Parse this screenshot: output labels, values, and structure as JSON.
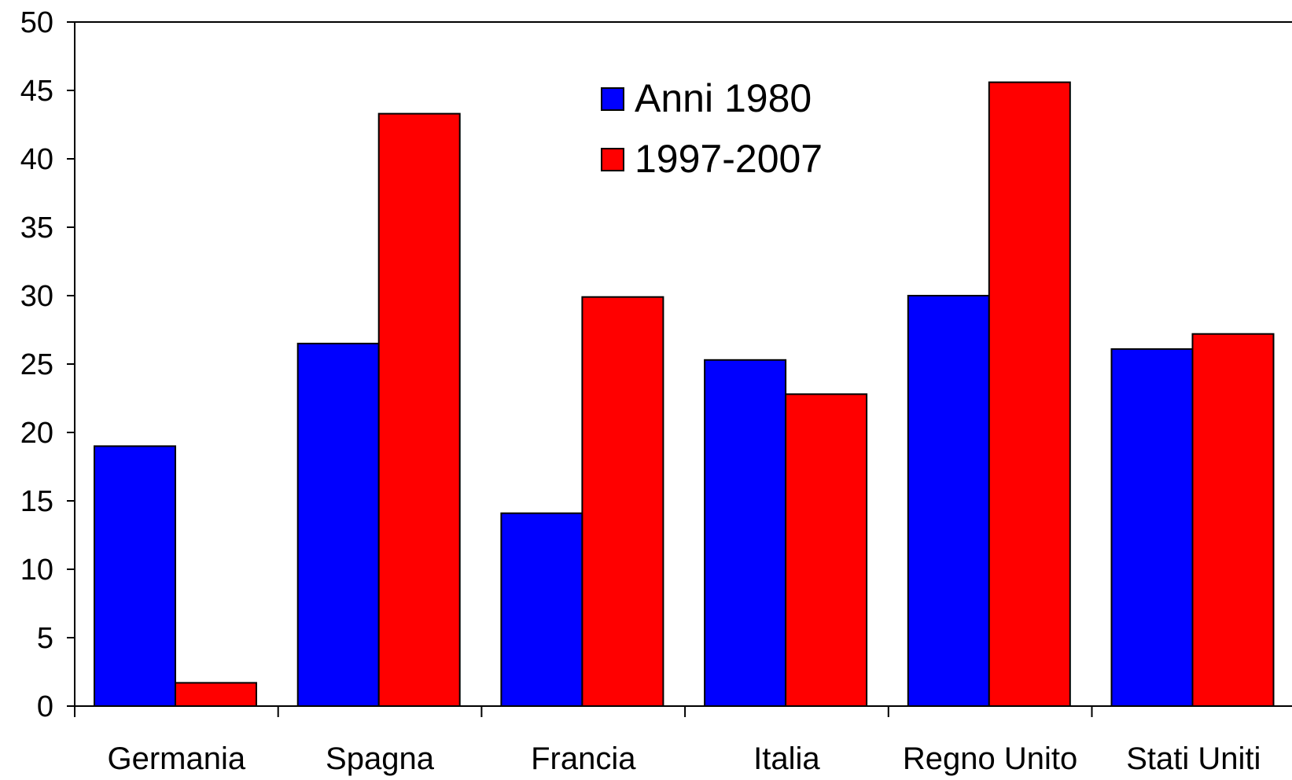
{
  "chart_data": {
    "type": "bar",
    "title": "",
    "xlabel": "",
    "ylabel": "",
    "ylim": [
      0,
      50
    ],
    "yticks": [
      0,
      5,
      10,
      15,
      20,
      25,
      30,
      35,
      40,
      45,
      50
    ],
    "categories": [
      "Germania",
      "Spagna",
      "Francia",
      "Italia",
      "Regno Unito",
      "Stati Uniti"
    ],
    "series": [
      {
        "name": "Anni 1980",
        "color": "#0000ff",
        "values": [
          19.0,
          26.5,
          14.1,
          25.3,
          30.0,
          26.1
        ]
      },
      {
        "name": "1997-2007",
        "color": "#ff0000",
        "values": [
          1.7,
          43.3,
          29.9,
          22.8,
          45.6,
          27.2
        ]
      }
    ],
    "legend_position": "top-center",
    "grid": false
  }
}
